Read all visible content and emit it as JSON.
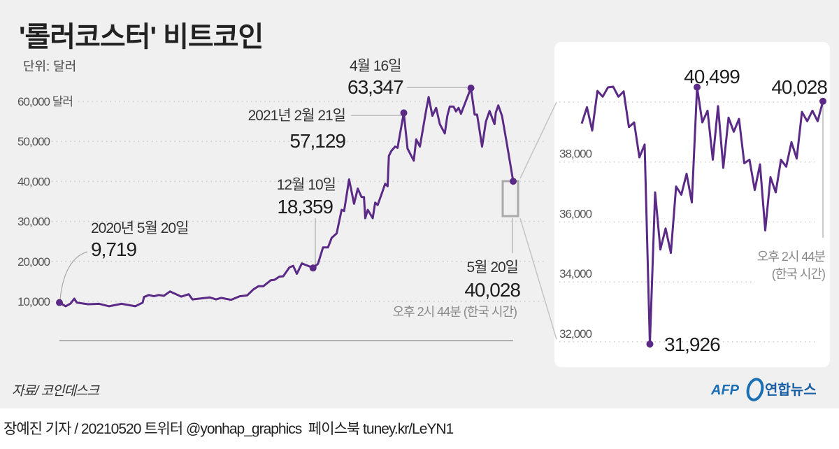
{
  "header": {
    "title": "'롤러코스터' 비트코인",
    "unit": "단위: 달러"
  },
  "footer": {
    "source": "자료/ 코인데스크",
    "logo_afp": "AFP",
    "logo_yonhap": "연합뉴스",
    "credit": "장예진 기자 / 20210520 트위터 @yonhap_graphics  페이스북 tuney.kr/LeYN1"
  },
  "colors": {
    "line": "#5b2a86",
    "background": "#f0f0f0",
    "panel": "#ffffff",
    "zoom_box": "#aaaaaa"
  },
  "chart_data": [
    {
      "type": "line",
      "title": "'롤러코스터' 비트코인",
      "ylabel": "단위: 달러",
      "xlim": [
        "2020-05-20",
        "2021-05-20"
      ],
      "ylim": [
        10000,
        60000
      ],
      "yticks": [
        "10,000",
        "20,000",
        "30,000",
        "40,000",
        "50,000",
        "60,000 달러"
      ],
      "ytick_values": [
        10000,
        20000,
        30000,
        40000,
        50000,
        60000
      ],
      "grid": true,
      "series": [
        {
          "x": [
            "2020-05-20",
            "2020-05-25",
            "2020-05-29",
            "2020-06-01",
            "2020-06-03",
            "2020-06-12",
            "2020-06-21",
            "2020-06-29",
            "2020-07-09",
            "2020-07-20",
            "2020-07-26",
            "2020-07-27",
            "2020-07-31",
            "2020-08-04",
            "2020-08-08",
            "2020-08-12",
            "2020-08-17",
            "2020-08-26",
            "2020-09-01",
            "2020-09-04",
            "2020-09-18",
            "2020-09-23",
            "2020-09-27",
            "2020-10-05",
            "2020-10-12",
            "2020-10-18",
            "2020-10-23",
            "2020-10-27",
            "2020-10-31",
            "2020-11-06",
            "2020-11-09",
            "2020-11-13",
            "2020-11-16",
            "2020-11-21",
            "2020-11-24",
            "2020-11-27",
            "2020-12-01",
            "2020-12-06",
            "2020-12-10",
            "2020-12-14",
            "2020-12-18",
            "2020-12-22",
            "2020-12-25",
            "2020-12-29",
            "2021-01-02",
            "2021-01-04",
            "2021-01-08",
            "2021-01-12",
            "2021-01-15",
            "2021-01-18",
            "2021-01-20",
            "2021-01-21",
            "2021-01-23",
            "2021-01-27",
            "2021-01-29",
            "2021-01-31",
            "2021-02-04",
            "2021-02-06",
            "2021-02-08",
            "2021-02-09",
            "2021-02-11",
            "2021-02-14",
            "2021-02-16",
            "2021-02-21",
            "2021-02-24",
            "2021-03-01",
            "2021-03-03",
            "2021-03-06",
            "2021-03-11",
            "2021-03-13",
            "2021-03-16",
            "2021-03-19",
            "2021-03-22",
            "2021-03-26",
            "2021-03-28",
            "2021-03-30",
            "2021-04-02",
            "2021-04-04",
            "2021-04-06",
            "2021-04-08",
            "2021-04-16",
            "2021-04-19",
            "2021-04-21",
            "2021-04-25",
            "2021-04-28",
            "2021-05-01",
            "2021-05-05",
            "2021-05-06",
            "2021-05-08",
            "2021-05-11",
            "2021-05-15",
            "2021-05-20"
          ],
          "values": [
            9719,
            8800,
            9500,
            10700,
            9700,
            9300,
            9400,
            8800,
            9400,
            8800,
            9700,
            11100,
            11600,
            11300,
            11600,
            11400,
            12500,
            11200,
            11800,
            10500,
            11000,
            10500,
            10900,
            10400,
            11300,
            11500,
            13000,
            13800,
            13800,
            15300,
            15400,
            16200,
            16300,
            18500,
            18900,
            16900,
            19500,
            18900,
            18359,
            19400,
            23500,
            23500,
            25900,
            27000,
            32900,
            32600,
            40500,
            34400,
            38200,
            36100,
            36100,
            30800,
            32900,
            30800,
            34700,
            34100,
            37600,
            39400,
            38800,
            46400,
            47600,
            48700,
            48400,
            57129,
            48200,
            45200,
            50500,
            48700,
            57800,
            61100,
            56400,
            58400,
            54300,
            52000,
            56400,
            58700,
            58700,
            57500,
            58400,
            56900,
            63347,
            56700,
            56700,
            48700,
            54900,
            57600,
            54300,
            57200,
            59000,
            56400,
            49300,
            40028
          ]
        }
      ],
      "annotations": [
        {
          "date_label": "2020년 5월 20일",
          "value_label": "9,719",
          "x": "2020-05-20",
          "y": 9719
        },
        {
          "date_label": "12월 10일",
          "value_label": "18,359",
          "x": "2020-12-10",
          "y": 18359
        },
        {
          "date_label": "2021년 2월 21일",
          "value_label": "57,129",
          "x": "2021-02-21",
          "y": 57129
        },
        {
          "date_label": "4월 16일",
          "value_label": "63,347",
          "x": "2021-04-16",
          "y": 63347
        },
        {
          "date_label": "5월 20일",
          "value_label": "40,028",
          "note": "오후 2시 44분 (한국 시간)",
          "x": "2021-05-20",
          "y": 40028
        }
      ]
    },
    {
      "type": "line",
      "ylim": [
        32000,
        40000
      ],
      "yticks": [
        "32,000",
        "34,000",
        "36,000",
        "38,000"
      ],
      "ytick_values": [
        32000,
        34000,
        36000,
        38000
      ],
      "grid_values": [
        32000,
        34000,
        36000,
        38000,
        40000
      ],
      "grid": true,
      "series": [
        {
          "values": [
            39284,
            39829,
            39051,
            40373,
            40179,
            40490,
            40513,
            40179,
            40358,
            39167,
            39323,
            38156,
            38584,
            31926,
            36989,
            35083,
            35783,
            34966,
            37183,
            36911,
            37611,
            36654,
            40499,
            39323,
            39712,
            38078,
            39868,
            37806,
            39479,
            39012,
            39440,
            37961,
            38078,
            37067,
            37922,
            35721,
            37494,
            36989,
            38078,
            37845,
            38662,
            38117,
            39673,
            39362,
            39712,
            39362,
            40028
          ]
        }
      ],
      "annotations": [
        {
          "value_label": "40,499",
          "index": 22,
          "y": 40499
        },
        {
          "value_label": "31,926",
          "index": 13,
          "y": 31926
        },
        {
          "value_label": "40,028",
          "index": 46,
          "y": 40028,
          "note_line1": "오후 2시 44분",
          "note_line2": "(한국 시간)"
        }
      ]
    }
  ]
}
